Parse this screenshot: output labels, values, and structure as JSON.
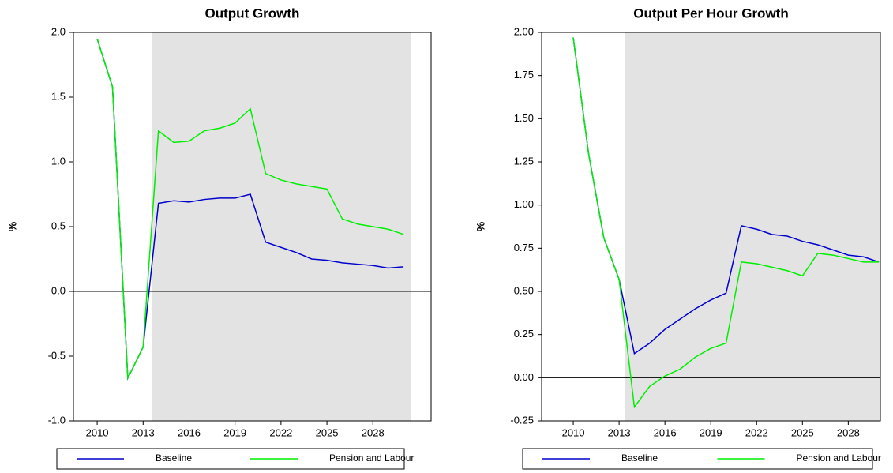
{
  "chart_data": [
    {
      "type": "line",
      "title": "Output Growth",
      "y_label": "%",
      "x": [
        2010,
        2011,
        2012,
        2013,
        2014,
        2015,
        2016,
        2017,
        2018,
        2019,
        2020,
        2021,
        2022,
        2023,
        2024,
        2025,
        2026,
        2027,
        2028,
        2029,
        2030
      ],
      "series": [
        {
          "name": "Baseline",
          "color": "#0000cc",
          "values": [
            1.95,
            1.58,
            -0.67,
            -0.43,
            0.68,
            0.7,
            0.69,
            0.71,
            0.72,
            0.72,
            0.75,
            0.38,
            0.34,
            0.3,
            0.25,
            0.24,
            0.22,
            0.21,
            0.2,
            0.18,
            0.19
          ]
        },
        {
          "name": "Pension and Labour",
          "color": "#00ee00",
          "values": [
            1.95,
            1.58,
            -0.67,
            -0.43,
            1.24,
            1.15,
            1.16,
            1.24,
            1.26,
            1.3,
            1.41,
            0.91,
            0.86,
            0.83,
            0.81,
            0.79,
            0.56,
            0.52,
            0.5,
            0.48,
            0.44
          ]
        }
      ],
      "xlim": [
        2008.45,
        2031.8
      ],
      "xticks": [
        2010,
        2013,
        2016,
        2019,
        2022,
        2025,
        2028
      ],
      "ylim": [
        -1,
        2
      ],
      "yticks": [
        {
          "value": -1,
          "label": "-1.0"
        },
        -0.5,
        {
          "value": 0,
          "label": "0.0"
        },
        0.5,
        {
          "value": 1,
          "label": "1.0"
        },
        1.5,
        {
          "value": 2,
          "label": "2.0"
        }
      ],
      "shade_xlim": [
        2013.55,
        2030.5
      ],
      "zero_line": true,
      "legend": "bottom"
    },
    {
      "type": "line",
      "title": "Output Per Hour Growth",
      "y_label": "%",
      "x": [
        2010,
        2011,
        2012,
        2013,
        2014,
        2015,
        2016,
        2017,
        2018,
        2019,
        2020,
        2021,
        2022,
        2023,
        2024,
        2025,
        2026,
        2027,
        2028,
        2029,
        2030
      ],
      "series": [
        {
          "name": "Baseline",
          "color": "#0000cc",
          "values": [
            1.97,
            1.3,
            0.81,
            0.57,
            0.14,
            0.2,
            0.28,
            0.34,
            0.4,
            0.45,
            0.49,
            0.88,
            0.86,
            0.83,
            0.82,
            0.79,
            0.77,
            0.74,
            0.71,
            0.7,
            0.67
          ]
        },
        {
          "name": "Pension and Labour",
          "color": "#00ee00",
          "values": [
            1.97,
            1.3,
            0.81,
            0.57,
            -0.17,
            -0.05,
            0.01,
            0.05,
            0.12,
            0.17,
            0.2,
            0.67,
            0.66,
            0.64,
            0.62,
            0.59,
            0.72,
            0.71,
            0.69,
            0.67,
            0.67
          ]
        }
      ],
      "xlim": [
        2007.93,
        2030.1
      ],
      "xticks": [
        2010,
        2013,
        2016,
        2019,
        2022,
        2025,
        2028
      ],
      "ylim": [
        -0.25,
        2
      ],
      "yticks": [
        -0.25,
        {
          "value": 0,
          "label": "0.00"
        },
        0.25,
        {
          "value": 0.5,
          "label": "0.50"
        },
        0.75,
        {
          "value": 1,
          "label": "1.00"
        },
        1.25,
        {
          "value": 1.5,
          "label": "1.50"
        },
        1.75,
        {
          "value": 2,
          "label": "2.00"
        }
      ],
      "shade_xlim": [
        2013.4,
        2030.1
      ],
      "zero_line": true,
      "legend": "bottom"
    }
  ]
}
